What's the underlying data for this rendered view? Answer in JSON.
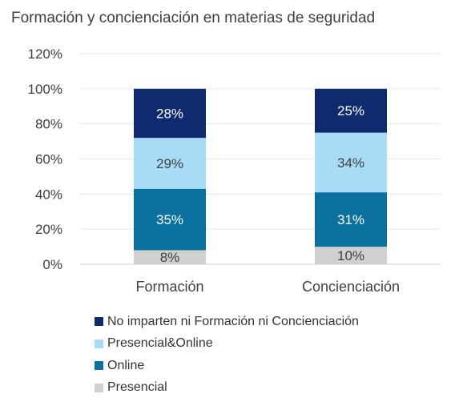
{
  "title": "Formación y concienciación en materias de seguridad",
  "chart_data": {
    "type": "bar",
    "stacked": true,
    "title": "Formación y concienciación en materias de seguridad",
    "categories": [
      "Formación",
      "Concienciación"
    ],
    "ylim": [
      0,
      120
    ],
    "yticks": [
      "0%",
      "20%",
      "40%",
      "60%",
      "80%",
      "100%",
      "120%"
    ],
    "ytick_values": [
      0,
      20,
      40,
      60,
      80,
      100,
      120
    ],
    "grid": true,
    "legend_position": "bottom",
    "series": [
      {
        "name": "Presencial",
        "values": [
          8,
          10
        ],
        "labels": [
          "8%",
          "10%"
        ],
        "color": "#d0d0d0",
        "label_color": "#404040"
      },
      {
        "name": "Online",
        "values": [
          35,
          31
        ],
        "labels": [
          "35%",
          "31%"
        ],
        "color": "#0b72a0",
        "label_color": "#ffffff"
      },
      {
        "name": "Presencial&Online",
        "values": [
          29,
          34
        ],
        "labels": [
          "29%",
          "34%"
        ],
        "color": "#a8dcf6",
        "label_color": "#404040"
      },
      {
        "name": "No imparten ni Formación ni Concienciación",
        "values": [
          28,
          25
        ],
        "labels": [
          "28%",
          "25%"
        ],
        "color": "#0f2a6e",
        "label_color": "#ffffff"
      }
    ]
  },
  "legend": [
    {
      "label": "No imparten ni Formación ni Concienciación",
      "color": "#0f2a6e"
    },
    {
      "label": "Presencial&Online",
      "color": "#a8dcf6"
    },
    {
      "label": "Online",
      "color": "#0b72a0"
    },
    {
      "label": "Presencial",
      "color": "#d0d0d0"
    }
  ]
}
